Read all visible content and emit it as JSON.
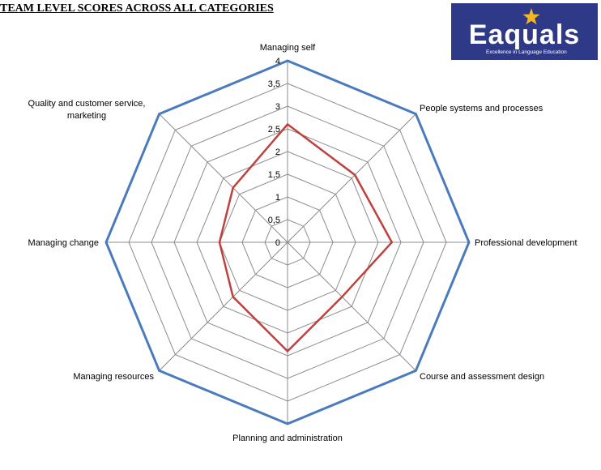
{
  "page": {
    "title": "TEAM LEVEL SCORES ACROSS ALL CATEGORIES"
  },
  "logo": {
    "name": "Eaquals",
    "tagline": "Excellence in Language Education",
    "star_icon": "star-icon",
    "background": "#2e3a87",
    "star_color": "#f5b71e"
  },
  "chart_data": {
    "type": "radar",
    "categories": [
      "Managing self",
      "People systems and processes",
      "Professional development",
      "Course and assessment design",
      "Planning and administration",
      "Managing resources",
      "Managing change",
      "Quality and customer service, marketing"
    ],
    "tick_labels": [
      "0",
      "0,5",
      "1",
      "1,5",
      "2",
      "2,5",
      "3",
      "3,5",
      "4"
    ],
    "range": [
      0,
      4
    ],
    "series": [
      {
        "values": [
          4,
          4,
          4,
          4,
          4,
          4,
          4,
          4
        ],
        "color": "#4a7bbd"
      },
      {
        "values": [
          2.6,
          2.1,
          2.3,
          1.7,
          2.4,
          1.7,
          1.5,
          1.7
        ],
        "color": "#c0403d"
      }
    ],
    "grid": true,
    "legend": "none"
  }
}
